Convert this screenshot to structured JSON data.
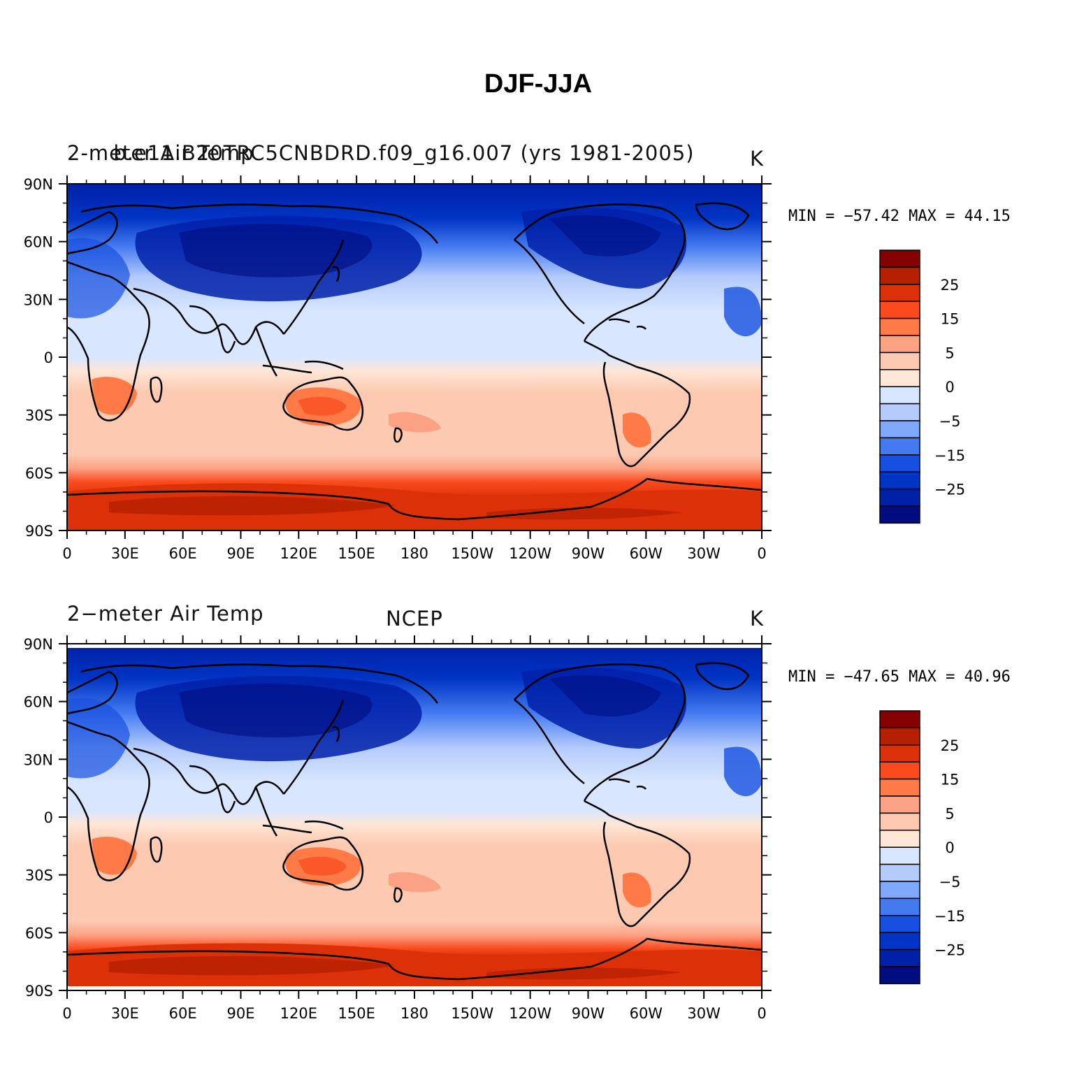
{
  "title": "DJF-JJA",
  "colorbar": {
    "colors": [
      "#000C7F",
      "#0020A8",
      "#0034C4",
      "#1750E0",
      "#447AF0",
      "#7EA8F8",
      "#B4CBFC",
      "#D8E7FF",
      "#FFE6D6",
      "#FDCAB1",
      "#FCA284",
      "#FF7A46",
      "#FA4A1E",
      "#DC3008",
      "#B52000",
      "#850000"
    ],
    "labels": [
      "25",
      "15",
      "5",
      "0",
      "−5",
      "−15",
      "−25"
    ]
  },
  "axes": {
    "lat_labels": [
      "90N",
      "60N",
      "30N",
      "0",
      "30S",
      "60S",
      "90S"
    ],
    "lon_labels": [
      "0",
      "30E",
      "60E",
      "90E",
      "120E",
      "150E",
      "180",
      "150W",
      "120W",
      "90W",
      "60W",
      "30W",
      "0"
    ]
  },
  "panels": [
    {
      "id": "model",
      "left_title": "2-meter Air Temp",
      "center_title": "b.e11.B20TRC5CNBDRD.f09_g16.007 (yrs 1981-2005)",
      "units": "K",
      "min": "-57.42",
      "max": "44.15",
      "minmax_text": "MIN = −57.42 MAX =   44.15"
    },
    {
      "id": "ncep",
      "left_title": "2−meter Air Temp",
      "center_title": "NCEP",
      "units": "K",
      "min": "-47.65",
      "max": "40.96",
      "minmax_text": "MIN = −47.65 MAX =   40.96"
    }
  ]
}
